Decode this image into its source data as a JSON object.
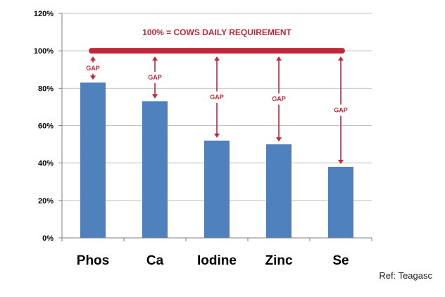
{
  "chart_data": {
    "type": "bar",
    "categories": [
      "Phos",
      "Ca",
      "Iodine",
      "Zinc",
      "Se"
    ],
    "values": [
      83,
      73,
      52,
      50,
      38
    ],
    "yticks": [
      "0%",
      "20%",
      "40%",
      "60%",
      "80%",
      "100%",
      "120%"
    ],
    "ylim": [
      0,
      120
    ],
    "grid": true,
    "legend": "none",
    "colors": {
      "bar": "#4f81bd",
      "annotation": "#c0283a",
      "grid": "#bfbfbf",
      "axis": "#7f7f7f"
    },
    "annotations": {
      "requirement_label": "100% = COWS DAILY REQUIREMENT",
      "requirement_value": 100,
      "gap_label": "GAP"
    }
  },
  "source": "Ref: Teagasc"
}
